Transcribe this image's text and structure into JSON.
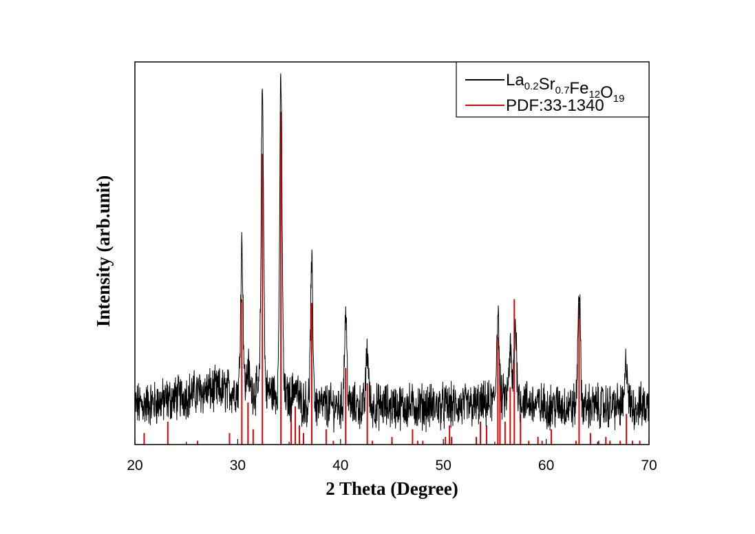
{
  "chart_data": {
    "type": "line",
    "title": "",
    "xlabel": "2 Theta (Degree)",
    "ylabel": "Intensity (arb.unit)",
    "xlim": [
      20,
      70
    ],
    "ylim": [
      0,
      100
    ],
    "x_ticks": [
      20,
      30,
      40,
      50,
      60,
      70
    ],
    "x_tick_labels": [
      "20",
      "30",
      "40",
      "50",
      "60",
      "70"
    ],
    "y_ticks_shown": false,
    "grid": false,
    "legend_position": "top-right",
    "series": [
      {
        "name": "La0.2Sr0.7Fe12O19",
        "legend_parts": [
          {
            "text": "La",
            "sub": "0.2"
          },
          {
            "text": "Sr",
            "sub": "0.7"
          },
          {
            "text": "Fe",
            "sub": "12"
          },
          {
            "text": "O",
            "sub": "19"
          }
        ],
        "color": "#000000",
        "style": "noisy-line",
        "baseline": 10,
        "peaks": [
          {
            "x": 30.4,
            "height": 48
          },
          {
            "x": 31.0,
            "height": 16
          },
          {
            "x": 32.4,
            "height": 88
          },
          {
            "x": 34.2,
            "height": 91
          },
          {
            "x": 35.5,
            "height": 14
          },
          {
            "x": 35.8,
            "height": 12
          },
          {
            "x": 37.2,
            "height": 45
          },
          {
            "x": 40.5,
            "height": 34
          },
          {
            "x": 42.6,
            "height": 25
          },
          {
            "x": 55.3,
            "height": 33
          },
          {
            "x": 56.5,
            "height": 22
          },
          {
            "x": 57.0,
            "height": 29
          },
          {
            "x": 63.2,
            "height": 41
          },
          {
            "x": 67.8,
            "height": 22
          }
        ]
      },
      {
        "name": "PDF:33-1340",
        "color": "#e00000",
        "style": "sticks",
        "sticks": [
          {
            "x": 20.9,
            "y": 3
          },
          {
            "x": 23.2,
            "y": 6
          },
          {
            "x": 26.1,
            "y": 1
          },
          {
            "x": 29.2,
            "y": 3
          },
          {
            "x": 30.4,
            "y": 38
          },
          {
            "x": 31.0,
            "y": 11
          },
          {
            "x": 31.5,
            "y": 4
          },
          {
            "x": 32.4,
            "y": 76
          },
          {
            "x": 34.2,
            "y": 87
          },
          {
            "x": 35.2,
            "y": 8
          },
          {
            "x": 35.6,
            "y": 10
          },
          {
            "x": 36.0,
            "y": 5
          },
          {
            "x": 36.4,
            "y": 3
          },
          {
            "x": 37.2,
            "y": 37
          },
          {
            "x": 38.6,
            "y": 4
          },
          {
            "x": 39.3,
            "y": 1
          },
          {
            "x": 40.5,
            "y": 20
          },
          {
            "x": 42.6,
            "y": 16
          },
          {
            "x": 43.1,
            "y": 1
          },
          {
            "x": 45.0,
            "y": 2
          },
          {
            "x": 47.0,
            "y": 4
          },
          {
            "x": 47.5,
            "y": 1
          },
          {
            "x": 48.0,
            "y": 1
          },
          {
            "x": 50.2,
            "y": 2
          },
          {
            "x": 50.6,
            "y": 5
          },
          {
            "x": 50.8,
            "y": 2
          },
          {
            "x": 53.2,
            "y": 2
          },
          {
            "x": 53.6,
            "y": 6
          },
          {
            "x": 54.2,
            "y": 5
          },
          {
            "x": 55.3,
            "y": 28
          },
          {
            "x": 55.5,
            "y": 21
          },
          {
            "x": 56.0,
            "y": 6
          },
          {
            "x": 56.5,
            "y": 15
          },
          {
            "x": 56.9,
            "y": 38
          },
          {
            "x": 57.5,
            "y": 8
          },
          {
            "x": 58.3,
            "y": 1
          },
          {
            "x": 59.2,
            "y": 2
          },
          {
            "x": 59.6,
            "y": 1
          },
          {
            "x": 60.5,
            "y": 4
          },
          {
            "x": 62.9,
            "y": 1
          },
          {
            "x": 63.2,
            "y": 37
          },
          {
            "x": 64.3,
            "y": 3
          },
          {
            "x": 65.1,
            "y": 1
          },
          {
            "x": 65.8,
            "y": 2
          },
          {
            "x": 66.2,
            "y": 1
          },
          {
            "x": 67.2,
            "y": 1
          },
          {
            "x": 67.8,
            "y": 8
          },
          {
            "x": 68.4,
            "y": 1
          },
          {
            "x": 69.1,
            "y": 1
          }
        ]
      }
    ]
  }
}
